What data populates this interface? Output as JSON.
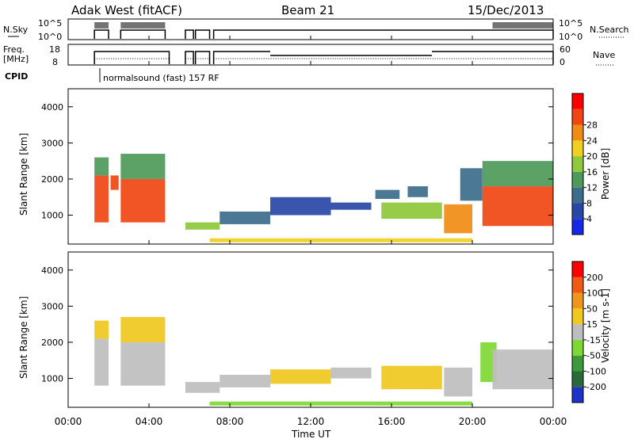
{
  "header": {
    "station": "Adak West (fitACF)",
    "beam": "Beam 21",
    "date": "15/Dec/2013"
  },
  "panels": {
    "nsky": {
      "label": "N.Sky",
      "right_label": "N.Search",
      "ticks_left": [
        "10^5",
        "10^0"
      ],
      "ticks_right": [
        "10^5",
        "10^0"
      ]
    },
    "freq": {
      "label": "Freq.",
      "unit": "[MHz]",
      "right_label": "Nave",
      "ticks_left": [
        "18",
        "8"
      ],
      "ticks_right": [
        "60",
        "0"
      ]
    },
    "cpid": {
      "label": "CPID",
      "text": "normalsound (fast) 157 RF"
    }
  },
  "chart_data": [
    {
      "type": "heatmap",
      "name": "power",
      "ylabel": "Slant Range [km]",
      "y_ticks": [
        "1000",
        "2000",
        "3000",
        "4000"
      ],
      "ylim": [
        200,
        4500
      ],
      "xlim": [
        0,
        24
      ],
      "colorbar": {
        "label": "Power [dB]",
        "ticks": [
          "4",
          "8",
          "12",
          "16",
          "20",
          "24",
          "28"
        ],
        "colors": [
          "#1428e6",
          "#2846a6",
          "#3c6e8c",
          "#4e9a5a",
          "#8ec83c",
          "#f0d01e",
          "#f08c14",
          "#f04614",
          "#ff0000"
        ]
      },
      "regions": [
        {
          "x0": 1.3,
          "x1": 2.0,
          "y0": 800,
          "y1": 2100,
          "level": 7
        },
        {
          "x0": 2.1,
          "x1": 2.5,
          "y0": 1700,
          "y1": 2100,
          "level": 7
        },
        {
          "x0": 2.6,
          "x1": 4.8,
          "y0": 800,
          "y1": 2000,
          "level": 7
        },
        {
          "x0": 1.3,
          "x1": 2.0,
          "y0": 2100,
          "y1": 2600,
          "level": 3
        },
        {
          "x0": 2.6,
          "x1": 4.8,
          "y0": 2000,
          "y1": 2700,
          "level": 3
        },
        {
          "x0": 5.8,
          "x1": 7.5,
          "y0": 600,
          "y1": 800,
          "level": 4
        },
        {
          "x0": 7.5,
          "x1": 10.0,
          "y0": 750,
          "y1": 1100,
          "level": 2
        },
        {
          "x0": 10.0,
          "x1": 13.0,
          "y0": 1000,
          "y1": 1500,
          "level": 1
        },
        {
          "x0": 13.0,
          "x1": 15.0,
          "y0": 1150,
          "y1": 1350,
          "level": 1
        },
        {
          "x0": 15.2,
          "x1": 16.4,
          "y0": 1450,
          "y1": 1700,
          "level": 2
        },
        {
          "x0": 15.5,
          "x1": 18.5,
          "y0": 900,
          "y1": 1350,
          "level": 4
        },
        {
          "x0": 16.8,
          "x1": 17.8,
          "y0": 1500,
          "y1": 1800,
          "level": 2
        },
        {
          "x0": 18.6,
          "x1": 20.0,
          "y0": 500,
          "y1": 1300,
          "level": 6
        },
        {
          "x0": 19.4,
          "x1": 20.5,
          "y0": 1400,
          "y1": 2300,
          "level": 2
        },
        {
          "x0": 20.5,
          "x1": 24.0,
          "y0": 700,
          "y1": 1800,
          "level": 7
        },
        {
          "x0": 20.5,
          "x1": 24.0,
          "y0": 1800,
          "y1": 2500,
          "level": 3
        },
        {
          "x0": 7.0,
          "x1": 20.0,
          "y0": 250,
          "y1": 360,
          "level": 5
        }
      ]
    },
    {
      "type": "heatmap",
      "name": "velocity",
      "ylabel": "Slant Range [km]",
      "y_ticks": [
        "1000",
        "2000",
        "3000",
        "4000"
      ],
      "ylim": [
        200,
        4500
      ],
      "xlim": [
        0,
        24
      ],
      "xlabel": "Time UT",
      "x_ticks": [
        "00:00",
        "04:00",
        "08:00",
        "12:00",
        "16:00",
        "20:00",
        "00:00"
      ],
      "colorbar": {
        "label": "Velocity [m s-1]",
        "ticks": [
          "200",
          "100",
          "50",
          "15",
          "-15",
          "-50",
          "-100",
          "-200"
        ],
        "colors": [
          "#1e32c8",
          "#2a6a3a",
          "#3c9a3c",
          "#7ed832",
          "#bebebe",
          "#f0c81e",
          "#f0961e",
          "#f05a14",
          "#ff0000"
        ]
      },
      "regions": [
        {
          "x0": 1.3,
          "x1": 2.0,
          "y0": 800,
          "y1": 2100,
          "level": 4
        },
        {
          "x0": 2.6,
          "x1": 4.8,
          "y0": 800,
          "y1": 2000,
          "level": 4
        },
        {
          "x0": 1.3,
          "x1": 2.0,
          "y0": 2100,
          "y1": 2600,
          "level": 5
        },
        {
          "x0": 2.6,
          "x1": 4.8,
          "y0": 2000,
          "y1": 2700,
          "level": 5
        },
        {
          "x0": 5.8,
          "x1": 7.5,
          "y0": 600,
          "y1": 900,
          "level": 4
        },
        {
          "x0": 7.5,
          "x1": 10.0,
          "y0": 750,
          "y1": 1100,
          "level": 4
        },
        {
          "x0": 10.0,
          "x1": 13.0,
          "y0": 850,
          "y1": 1250,
          "level": 5
        },
        {
          "x0": 13.0,
          "x1": 15.0,
          "y0": 1000,
          "y1": 1300,
          "level": 4
        },
        {
          "x0": 15.5,
          "x1": 18.5,
          "y0": 700,
          "y1": 1350,
          "level": 5
        },
        {
          "x0": 18.6,
          "x1": 20.0,
          "y0": 500,
          "y1": 1300,
          "level": 4
        },
        {
          "x0": 20.4,
          "x1": 21.2,
          "y0": 900,
          "y1": 2000,
          "level": 3
        },
        {
          "x0": 21.0,
          "x1": 24.0,
          "y0": 700,
          "y1": 1800,
          "level": 4
        },
        {
          "x0": 7.0,
          "x1": 20.0,
          "y0": 250,
          "y1": 360,
          "level": 3
        }
      ]
    }
  ],
  "series_top": {
    "nsky_on": [
      [
        1.3,
        2.0
      ],
      [
        2.6,
        4.8
      ],
      [
        5.8,
        6.2
      ],
      [
        6.3,
        7.0
      ],
      [
        7.2,
        24.0
      ]
    ],
    "freq_on": [
      [
        1.3,
        5.0
      ],
      [
        5.8,
        6.2
      ],
      [
        6.3,
        7.0
      ],
      [
        7.2,
        24.0
      ]
    ],
    "freq_low": [
      [
        10.0,
        18.0
      ]
    ]
  }
}
